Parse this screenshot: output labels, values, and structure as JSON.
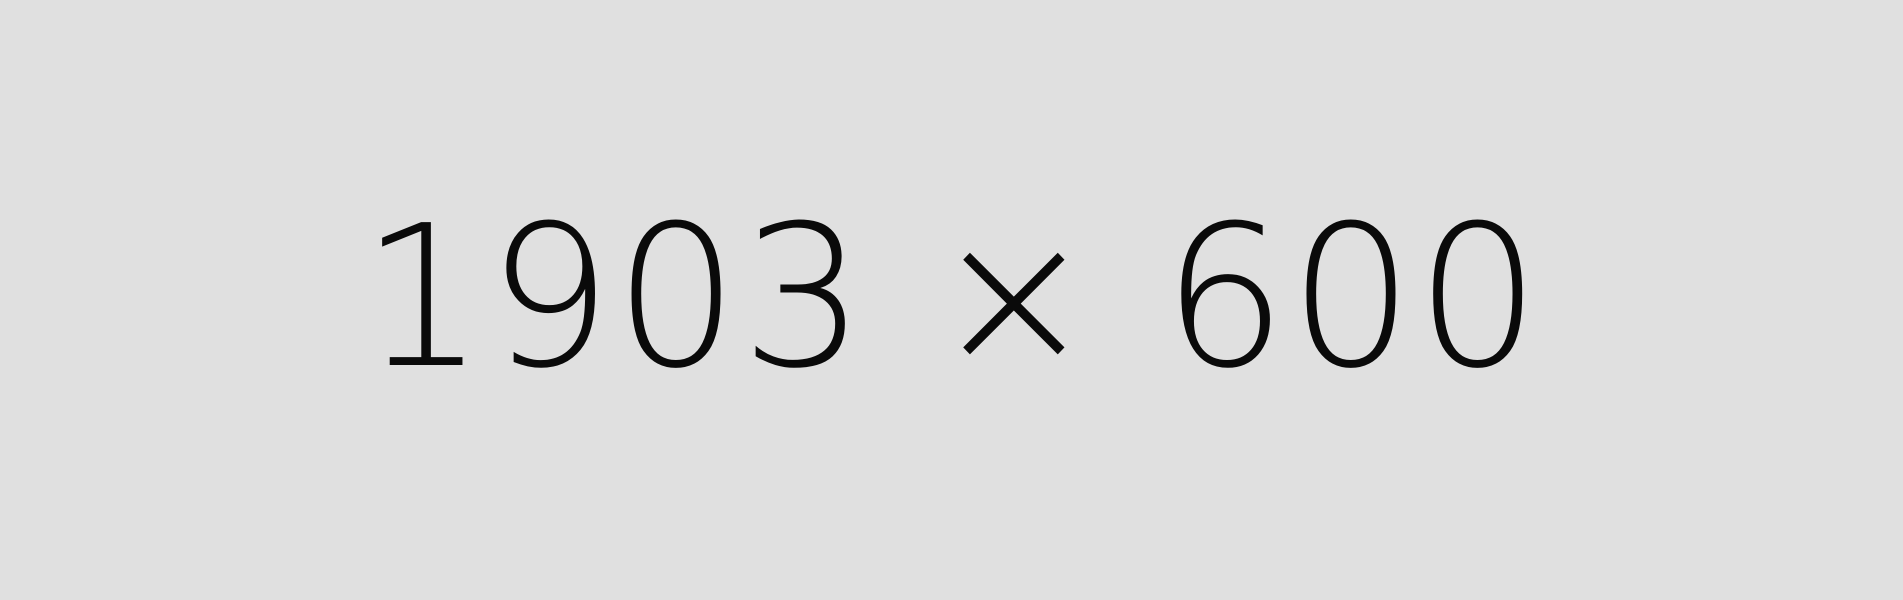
{
  "placeholder": {
    "label": "1903 × 600",
    "background_color": "#e0e0e0",
    "text_color": "#0a0a0a"
  }
}
